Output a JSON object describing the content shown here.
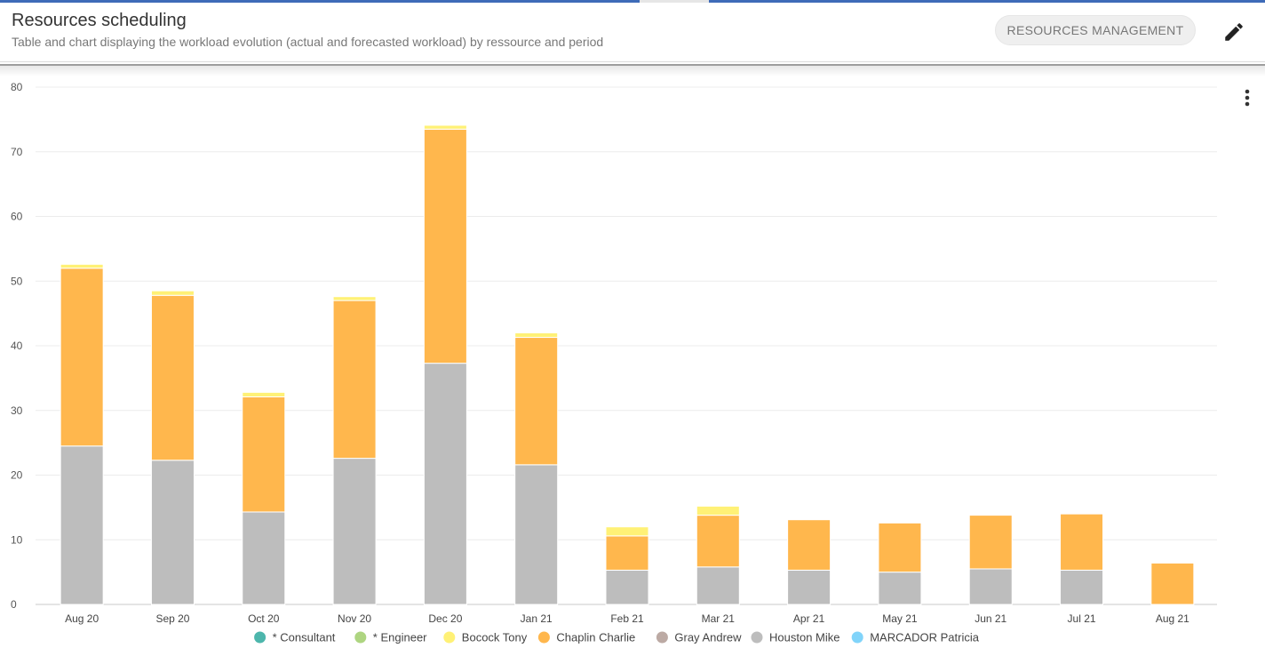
{
  "header": {
    "title": "Resources scheduling",
    "subtitle": "Table and chart displaying the workload evolution (actual and forecasted workload) by ressource and period",
    "resources_button_label": "RESOURCES MANAGEMENT",
    "edit_icon": "pencil-icon",
    "more_icon": "more-vert-icon"
  },
  "chart_data": {
    "type": "bar",
    "stacked": true,
    "categories": [
      "Aug 20",
      "Sep 20",
      "Oct 20",
      "Nov 20",
      "Dec 20",
      "Jan 21",
      "Feb 21",
      "Mar 21",
      "Apr 21",
      "May 21",
      "Jun 21",
      "Jul 21",
      "Aug 21"
    ],
    "ylim": [
      0,
      80
    ],
    "yticks": [
      0,
      10,
      20,
      30,
      40,
      50,
      60,
      70,
      80
    ],
    "grid": true,
    "legend_position": "bottom",
    "series": [
      {
        "name": "* Consultant",
        "color": "#4db6ac",
        "values": [
          0,
          0,
          0,
          0,
          0,
          0,
          0,
          0,
          0,
          0,
          0,
          0,
          0
        ]
      },
      {
        "name": "* Engineer",
        "color": "#aed581",
        "values": [
          0,
          0,
          0,
          0,
          0,
          0,
          0,
          0,
          0,
          0,
          0,
          0,
          0
        ]
      },
      {
        "name": "Houston Mike",
        "color": "#bdbdbd",
        "values": [
          24.5,
          22.3,
          14.3,
          22.6,
          37.3,
          21.6,
          5.3,
          5.8,
          5.3,
          5.0,
          5.5,
          5.3,
          0
        ]
      },
      {
        "name": "Chaplin Charlie",
        "color": "#ffb74d",
        "values": [
          27.5,
          25.5,
          17.8,
          24.4,
          36.2,
          19.7,
          5.3,
          8.0,
          7.8,
          7.6,
          8.3,
          8.7,
          6.4
        ]
      },
      {
        "name": "Bocock Tony",
        "color": "#fff176",
        "values": [
          0.6,
          0.7,
          0.7,
          0.6,
          0.6,
          0.7,
          1.4,
          1.4,
          0,
          0,
          0,
          0,
          0
        ]
      },
      {
        "name": "Gray Andrew",
        "color": "#bcaaa4",
        "values": [
          0,
          0,
          0,
          0,
          0,
          0,
          0,
          0,
          0,
          0,
          0,
          0,
          0
        ]
      },
      {
        "name": "MARCADOR Patricia",
        "color": "#81d4fa",
        "values": [
          0,
          0,
          0,
          0,
          0,
          0,
          0,
          0,
          0,
          0,
          0,
          0,
          0
        ]
      }
    ],
    "legend": [
      "* Consultant",
      "* Engineer",
      "Bocock Tony",
      "Chaplin Charlie",
      "Gray Andrew",
      "Houston Mike",
      "MARCADOR Patricia"
    ]
  }
}
